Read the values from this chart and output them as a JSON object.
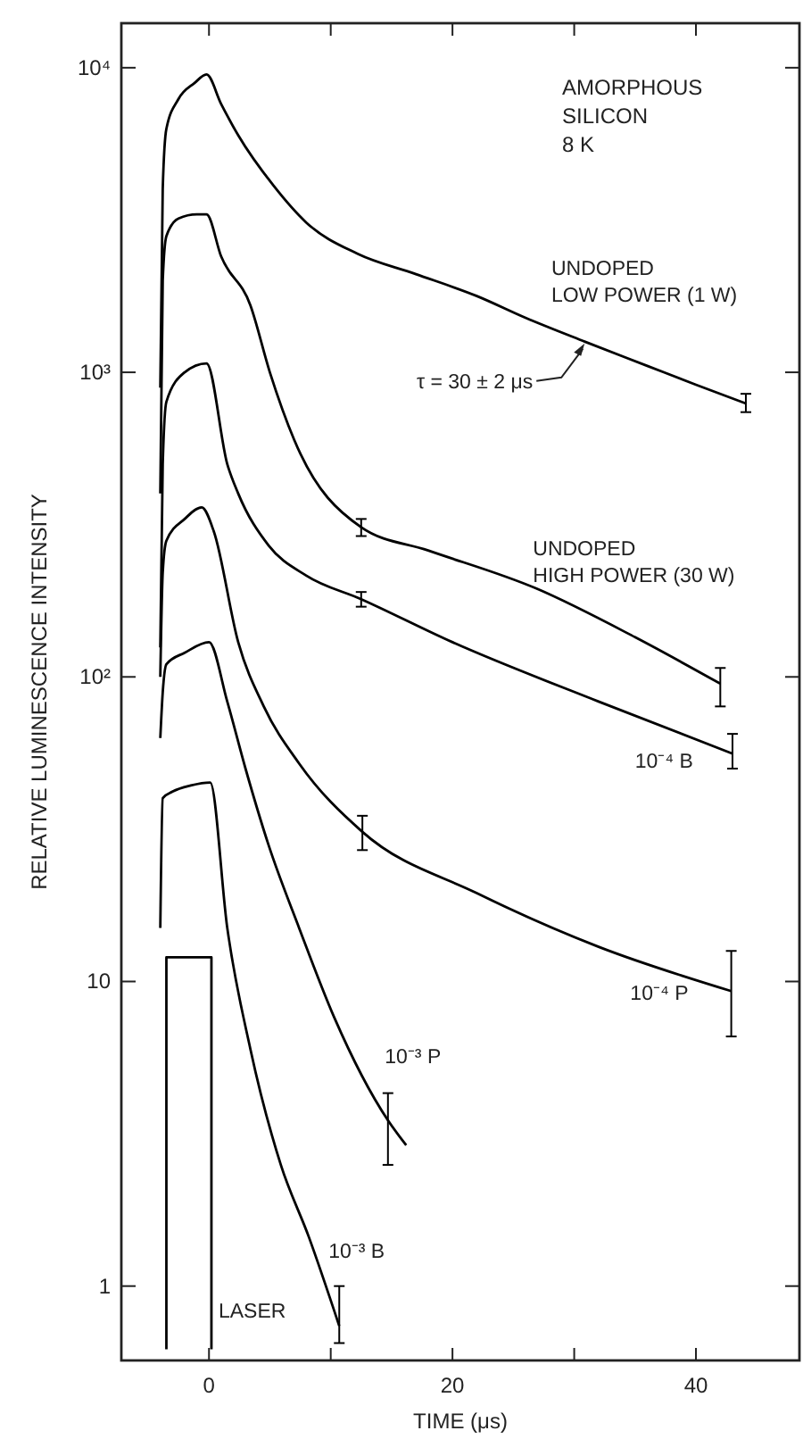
{
  "chart_data": {
    "type": "line",
    "xlabel": "TIME (μs)",
    "ylabel": "RELATIVE LUMINESCENCE INTENSITY",
    "log": "y",
    "grid": false,
    "marker": "none",
    "line_style": "solid",
    "xlim": [
      -7.2,
      48.5
    ],
    "xticks": [
      {
        "value": 0,
        "label": "0"
      },
      {
        "value": 10,
        "label": null
      },
      20,
      {
        "value": 30,
        "label": null
      },
      40
    ],
    "ylim": [
      0.57,
      14000
    ],
    "yticks": [
      1,
      10,
      {
        "value": 100,
        "label": "10²"
      },
      {
        "value": 1000,
        "label": "10³"
      },
      {
        "value": 10000,
        "label": "10⁴"
      }
    ],
    "annotations": [
      "AMORPHOUS\nSILICON\n8 K",
      {
        "text": "τ = 30 ± 2 μs",
        "x": 31,
        "y": 1260
      }
    ],
    "series": [
      {
        "name": "UNDOPED\nLOW POWER (1 W)",
        "color": "#000000",
        "x": [
          -4,
          -3.8,
          -3.5,
          -2.5,
          -1.2,
          -0.2,
          1,
          2.4,
          5.3,
          8,
          12.2,
          17,
          22,
          26,
          30.9,
          36,
          40,
          44.1
        ],
        "values": [
          890,
          4000,
          6300,
          7900,
          8900,
          9500,
          7600,
          6000,
          4100,
          3100,
          2450,
          2100,
          1780,
          1510,
          1260,
          1050,
          910,
          790
        ],
        "errors": [
          null,
          null,
          null,
          null,
          null,
          null,
          null,
          null,
          null,
          null,
          null,
          null,
          null,
          null,
          null,
          null,
          null,
          [
            740,
            850
          ]
        ]
      },
      {
        "name": "UNDOPED\nHIGH POWER (30 W)",
        "color": "#000000",
        "x": [
          -4,
          -3.8,
          -3.5,
          -2.5,
          -1,
          -0.2,
          1,
          3.4,
          5,
          7,
          12.5,
          18,
          26.9,
          35,
          42
        ],
        "values": [
          400,
          2000,
          2800,
          3200,
          3300,
          3300,
          2400,
          1660,
          1000,
          600,
          310,
          260,
          195,
          135,
          95
        ],
        "errors": [
          null,
          null,
          null,
          null,
          null,
          null,
          null,
          null,
          null,
          null,
          [
            290,
            330
          ],
          null,
          null,
          null,
          [
            80,
            107
          ]
        ]
      },
      {
        "name": "10⁻⁴ B",
        "color": "#000000",
        "x": [
          -4,
          -3.8,
          -3.5,
          -2,
          -0.2,
          1.5,
          2.4,
          4.9,
          8,
          12.5,
          20,
          32,
          43
        ],
        "values": [
          125,
          500,
          800,
          1000,
          1070,
          500,
          400,
          270,
          215,
          180,
          130,
          83,
          56
        ],
        "errors": [
          null,
          null,
          null,
          null,
          null,
          null,
          null,
          null,
          null,
          [
            170,
            190
          ],
          null,
          null,
          [
            50,
            65
          ]
        ]
      },
      {
        "name": "10⁻⁴ P",
        "color": "#000000",
        "x": [
          -4,
          -3.8,
          -3.5,
          -2,
          -0.6,
          0.4,
          2.4,
          4.5,
          7.4,
          12.6,
          22,
          32,
          42.9
        ],
        "values": [
          100,
          220,
          280,
          330,
          360,
          300,
          130,
          80,
          52,
          31,
          19.5,
          13,
          9.3
        ],
        "errors": [
          null,
          null,
          null,
          null,
          null,
          null,
          null,
          null,
          null,
          [
            27,
            35
          ],
          null,
          null,
          [
            6.6,
            12.6
          ]
        ]
      },
      {
        "name": "10⁻³ P",
        "color": "#000000",
        "x": [
          -4,
          -3.8,
          -3.5,
          -2,
          0,
          1.5,
          3,
          4.9,
          7.4,
          10.3,
          14.7,
          16.2
        ],
        "values": [
          63,
          89,
          110,
          120,
          130,
          83,
          50,
          28,
          15,
          7.6,
          3.5,
          2.9
        ],
        "errors": [
          null,
          null,
          null,
          null,
          null,
          null,
          null,
          null,
          null,
          null,
          [
            2.5,
            4.3
          ],
          null
        ]
      },
      {
        "name": "10⁻³ B",
        "color": "#000000",
        "x": [
          -4,
          -3.8,
          -3,
          -1.5,
          0.1,
          1.5,
          3.4,
          5.9,
          8.2,
          10.7
        ],
        "values": [
          15,
          40,
          42,
          44,
          45,
          15,
          6,
          2.5,
          1.45,
          0.74
        ],
        "errors": [
          null,
          null,
          null,
          null,
          null,
          null,
          null,
          null,
          null,
          [
            0.65,
            1.0
          ]
        ]
      },
      {
        "name": "LASER",
        "color": "#000000",
        "x": [
          -3.5,
          -3.5,
          0.2,
          0.2
        ],
        "values": [
          0.62,
          12,
          12,
          0.62
        ]
      }
    ]
  }
}
